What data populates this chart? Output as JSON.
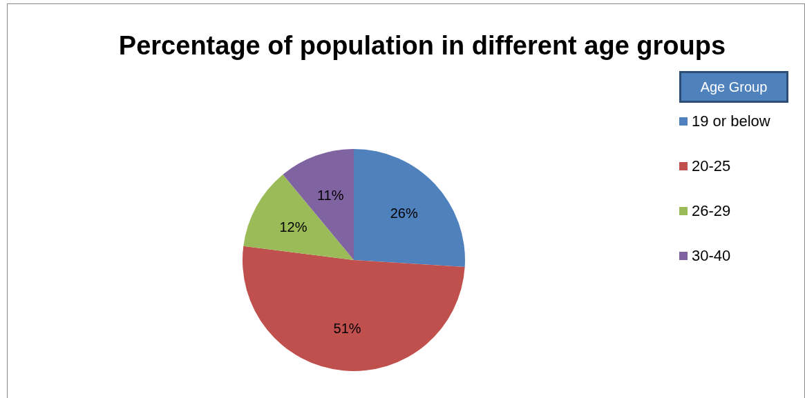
{
  "chart_data": {
    "type": "pie",
    "title": "Percentage of population in different age groups",
    "legend_title": "Age Group",
    "legend": "right",
    "categories": [
      "19 or below",
      "20-25",
      "26-29",
      "30-40"
    ],
    "values": [
      26,
      51,
      12,
      11
    ],
    "colors": [
      "#4f81bd",
      "#c0504d",
      "#9bbb59",
      "#8064a2"
    ],
    "value_labels": [
      "26%",
      "51%",
      "12%",
      "11%"
    ]
  }
}
